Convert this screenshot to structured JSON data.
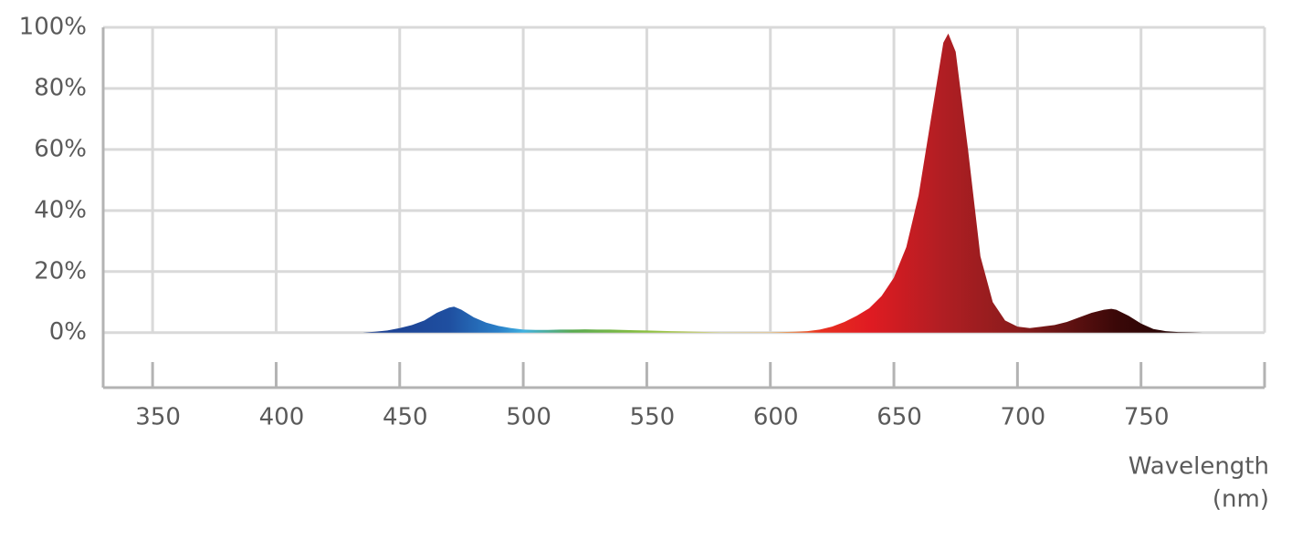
{
  "chart_data": {
    "type": "area",
    "x_label": "Wavelength",
    "x_unit": "(nm)",
    "x": [
      435,
      440,
      445,
      450,
      455,
      460,
      465,
      470,
      472,
      475,
      480,
      485,
      490,
      495,
      500,
      505,
      510,
      515,
      520,
      525,
      530,
      535,
      540,
      545,
      550,
      555,
      560,
      565,
      570,
      575,
      580,
      585,
      590,
      595,
      600,
      605,
      610,
      615,
      620,
      625,
      630,
      635,
      640,
      645,
      650,
      655,
      660,
      665,
      670,
      672,
      675,
      680,
      685,
      690,
      695,
      700,
      705,
      710,
      715,
      720,
      725,
      730,
      735,
      738,
      740,
      745,
      750,
      755,
      760,
      765,
      770,
      775
    ],
    "values": [
      0,
      0.3,
      0.7,
      1.5,
      2.5,
      4,
      6.5,
      8.2,
      8.5,
      7.5,
      5,
      3.3,
      2.2,
      1.5,
      1,
      0.9,
      0.9,
      1,
      1,
      1.1,
      1,
      1,
      0.9,
      0.8,
      0.7,
      0.6,
      0.5,
      0.4,
      0.3,
      0.2,
      0.1,
      0.1,
      0.1,
      0.1,
      0.1,
      0.2,
      0.3,
      0.5,
      1,
      2,
      3.5,
      5.5,
      8,
      12,
      18,
      28,
      45,
      70,
      95,
      98,
      92,
      60,
      25,
      10,
      4,
      2,
      1.5,
      2,
      2.5,
      3.5,
      5,
      6.5,
      7.5,
      7.8,
      7.5,
      5.5,
      3,
      1.2,
      0.5,
      0.2,
      0.1,
      0
    ],
    "color_stops": [
      {
        "x": 440,
        "color": "#1c3f91"
      },
      {
        "x": 470,
        "color": "#1f4fa0"
      },
      {
        "x": 490,
        "color": "#2a7fc8"
      },
      {
        "x": 500,
        "color": "#3fb0e0"
      },
      {
        "x": 520,
        "color": "#5aaa50"
      },
      {
        "x": 550,
        "color": "#8cc040"
      },
      {
        "x": 580,
        "color": "#d8d070"
      },
      {
        "x": 600,
        "color": "#f0b040"
      },
      {
        "x": 620,
        "color": "#e83020"
      },
      {
        "x": 640,
        "color": "#e01b22"
      },
      {
        "x": 670,
        "color": "#b01e23"
      },
      {
        "x": 700,
        "color": "#8a1c1c"
      },
      {
        "x": 740,
        "color": "#3a0808"
      },
      {
        "x": 770,
        "color": "#200404"
      }
    ],
    "xlim": [
      330,
      800
    ],
    "xticks": [
      350,
      400,
      450,
      500,
      550,
      600,
      650,
      700,
      750
    ],
    "ylim": [
      -18,
      100
    ],
    "yticks": [
      {
        "value": 0,
        "label": "0%"
      },
      {
        "value": 20,
        "label": "20%"
      },
      {
        "value": 40,
        "label": "40%"
      },
      {
        "value": 60,
        "label": "60%"
      },
      {
        "value": 80,
        "label": "80%"
      },
      {
        "value": 100,
        "label": "100%"
      }
    ],
    "grid": true
  }
}
